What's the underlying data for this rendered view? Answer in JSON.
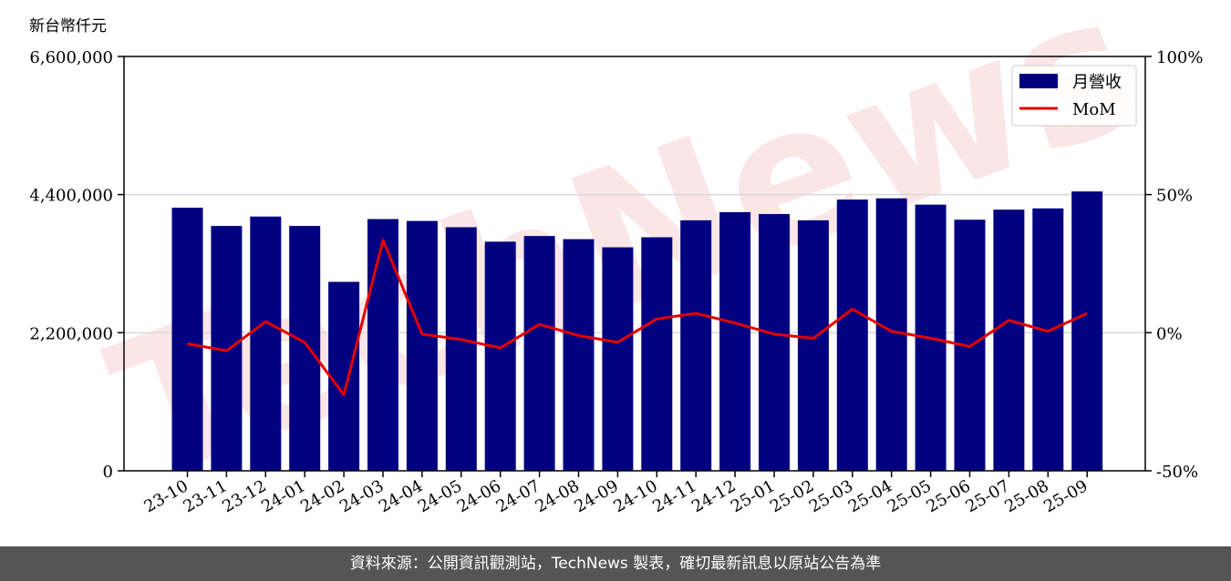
{
  "chart_data": {
    "type": "bar",
    "unit_label": "新台幣仟元",
    "categories": [
      "23-10",
      "23-11",
      "23-12",
      "24-01",
      "24-02",
      "24-03",
      "24-04",
      "24-05",
      "24-06",
      "24-07",
      "24-08",
      "24-09",
      "24-10",
      "24-11",
      "24-12",
      "25-01",
      "25-02",
      "25-03",
      "25-04",
      "25-05",
      "25-06",
      "25-07",
      "25-08",
      "25-09"
    ],
    "series": [
      {
        "name": "月營收",
        "axis": "left",
        "type": "bar",
        "color": "#000080",
        "values": [
          4190000,
          3900000,
          4050000,
          3900000,
          3010000,
          4010000,
          3980000,
          3880000,
          3650000,
          3740000,
          3690000,
          3560000,
          3720000,
          3990000,
          4120000,
          4090000,
          3990000,
          4320000,
          4340000,
          4240000,
          4000000,
          4160000,
          4180000,
          4450000
        ]
      },
      {
        "name": "MoM",
        "axis": "right",
        "type": "line",
        "color": "#e50000",
        "values": [
          -4,
          -6.5,
          4,
          -3.5,
          -22.5,
          33.5,
          -0.5,
          -2.5,
          -5.5,
          3,
          -1,
          -3.5,
          5,
          7,
          3.5,
          -0.5,
          -2,
          8.5,
          0.5,
          -2,
          -5,
          4.5,
          0.5,
          7
        ]
      }
    ],
    "y_left": {
      "min": 0,
      "max": 6600000,
      "ticks": [
        0,
        2200000,
        4400000,
        6600000
      ],
      "tick_labels": [
        "0",
        "2,200,000",
        "4,400,000",
        "6,600,000"
      ]
    },
    "y_right": {
      "min": -50,
      "max": 100,
      "ticks": [
        -50,
        0,
        50,
        100
      ],
      "tick_labels": [
        "-50%",
        "0%",
        "50%",
        "100%"
      ]
    },
    "grid": "horizontal",
    "legend_position": "top-right",
    "watermark": "TechNews"
  },
  "footer": {
    "text": "資料來源：公開資訊觀測站，TechNews 製表，確切最新訊息以原站公告為準"
  },
  "colors": {
    "bar": "#000080",
    "line": "#e50000",
    "footer_bg": "#555555",
    "watermark": "#f6c8c8"
  }
}
